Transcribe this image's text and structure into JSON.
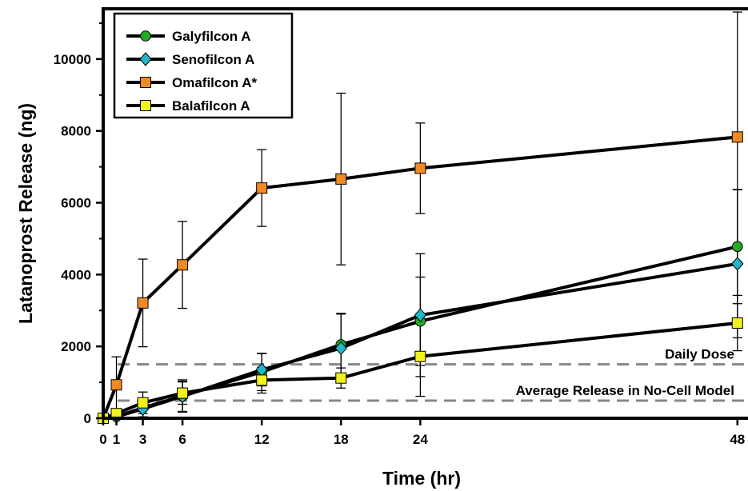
{
  "chart_data": {
    "type": "line",
    "xlabel": "Time (hr)",
    "ylabel": "Latanoprost Release (ng)",
    "xlim": [
      0,
      48.8
    ],
    "ylim": [
      0,
      11400
    ],
    "x_ticks": [
      0,
      1,
      3,
      6,
      12,
      18,
      24,
      48
    ],
    "y_ticks": [
      0,
      2000,
      4000,
      6000,
      8000,
      10000
    ],
    "grid": false,
    "legend_position": "top-left",
    "series": [
      {
        "name": "Galyfilcon A",
        "marker": "circle",
        "color": "#22aa22",
        "x": [
          0,
          1,
          3,
          6,
          12,
          18,
          24,
          48
        ],
        "y": [
          0,
          50,
          290,
          620,
          1290,
          2050,
          2700,
          4780
        ],
        "err": [
          0,
          60,
          250,
          450,
          520,
          870,
          1230,
          1590
        ]
      },
      {
        "name": "Senofilcon A",
        "marker": "diamond",
        "color": "#20b8c8",
        "x": [
          0,
          1,
          3,
          6,
          12,
          18,
          24,
          48
        ],
        "y": [
          0,
          40,
          260,
          610,
          1350,
          1950,
          2870,
          4300
        ],
        "err": [
          0,
          50,
          230,
          420,
          450,
          950,
          1710,
          2060
        ]
      },
      {
        "name": "Omafilcon A*",
        "marker": "square",
        "color": "#f08a22",
        "x": [
          0,
          1,
          3,
          6,
          12,
          18,
          24,
          48
        ],
        "y": [
          0,
          930,
          3210,
          4270,
          6410,
          6660,
          6960,
          7830
        ],
        "err": [
          0,
          780,
          1220,
          1210,
          1070,
          2390,
          1260,
          3480
        ]
      },
      {
        "name": "Balafilcon A",
        "marker": "square",
        "color": "#f2f21c",
        "x": [
          0,
          1,
          3,
          6,
          12,
          18,
          24,
          48
        ],
        "y": [
          0,
          130,
          430,
          700,
          1060,
          1120,
          1720,
          2650
        ],
        "err": [
          0,
          80,
          300,
          310,
          360,
          280,
          1110,
          770
        ]
      }
    ],
    "reference_lines": [
      {
        "label": "Daily Dose",
        "y": 1500,
        "style": "dashed",
        "color": "#888888"
      },
      {
        "label": "Average Release in No-Cell Model",
        "y": 490,
        "style": "dashed",
        "color": "#888888"
      }
    ]
  }
}
